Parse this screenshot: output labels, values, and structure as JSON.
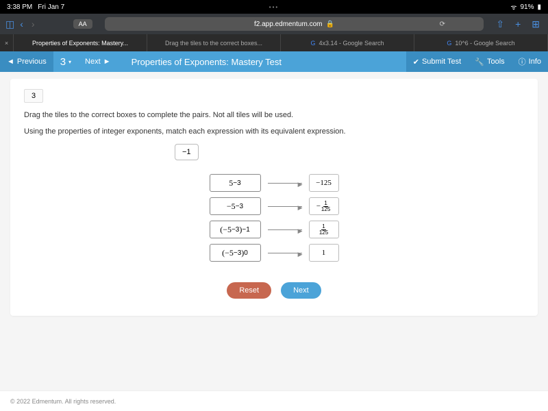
{
  "status": {
    "time": "3:38 PM",
    "date": "Fri Jan 7",
    "battery": "91%"
  },
  "browser": {
    "url": "f2.app.edmentum.com",
    "aa": "AA"
  },
  "tabs": [
    {
      "label": "Properties of Exponents: Mastery..."
    },
    {
      "label": "Drag the tiles to the correct boxes..."
    },
    {
      "label": "4x3.14 - Google Search"
    },
    {
      "label": "10^6 - Google Search"
    }
  ],
  "appBar": {
    "previous": "Previous",
    "current": "3",
    "next": "Next",
    "title": "Properties of Exponents: Mastery Test",
    "submit": "Submit Test",
    "tools": "Tools",
    "info": "Info"
  },
  "question": {
    "number": "3",
    "text1": "Drag the tiles to the correct boxes to complete the pairs. Not all tiles will be used.",
    "text2": "Using the properties of integer exponents, match each expression with its equivalent expression.",
    "loneTile": "−1",
    "pairs": [
      {
        "expr_html": "5<sup>−3</sup>",
        "ans": "−125",
        "ans_frac": null
      },
      {
        "expr_html": "−5<sup>−3</sup>",
        "ans": null,
        "ans_frac": {
          "neg": true,
          "num": "1",
          "den": "125"
        }
      },
      {
        "expr_html": "(−5<sup>−3</sup>)<sup>−1</sup>",
        "ans": null,
        "ans_frac": {
          "neg": false,
          "num": "1",
          "den": "125"
        }
      },
      {
        "expr_html": "(−5<sup>−3</sup>)<sup>0</sup>",
        "ans": "1",
        "ans_frac": null
      }
    ],
    "reset": "Reset",
    "nextBtn": "Next"
  },
  "footer": "© 2022 Edmentum. All rights reserved."
}
